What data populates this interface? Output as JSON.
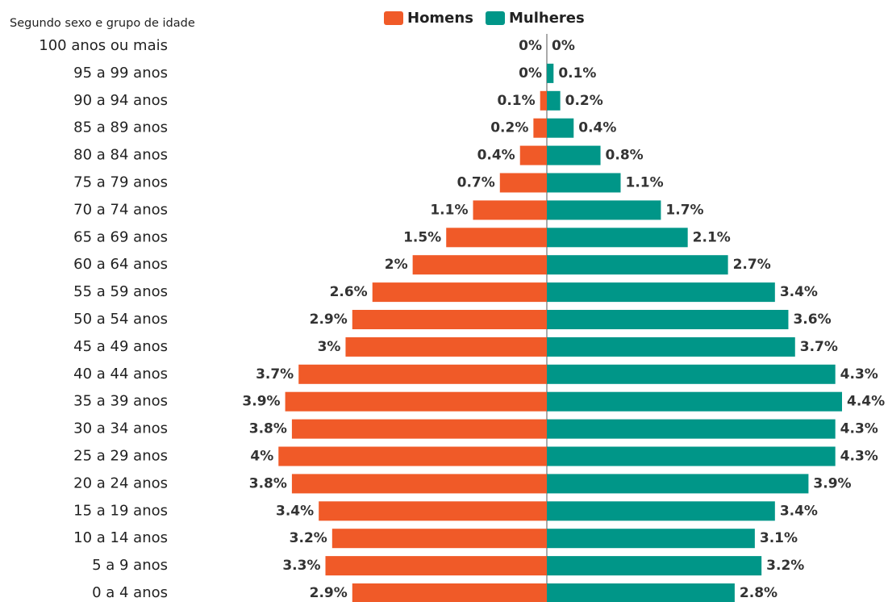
{
  "chart_data": {
    "type": "pyramid",
    "subtitle": "Segundo sexo e grupo de idade",
    "categories": [
      "100 anos ou mais",
      "95 a 99 anos",
      "90 a 94 anos",
      "85 a 89 anos",
      "80 a 84 anos",
      "75 a 79 anos",
      "70 a 74 anos",
      "65 a 69 anos",
      "60 a 64 anos",
      "55 a 59 anos",
      "50 a 54 anos",
      "45 a 49 anos",
      "40 a 44 anos",
      "35 a 39 anos",
      "30 a 34 anos",
      "25 a 29 anos",
      "20 a 24 anos",
      "15 a 19 anos",
      "10 a 14 anos",
      "5 a 9 anos",
      "0 a 4 anos"
    ],
    "series": [
      {
        "name": "Homens",
        "color": "#f05a28",
        "values": [
          0,
          0,
          0.1,
          0.2,
          0.4,
          0.7,
          1.1,
          1.5,
          2,
          2.6,
          2.9,
          3,
          3.7,
          3.9,
          3.8,
          4,
          3.8,
          3.4,
          3.2,
          3.3,
          2.9
        ],
        "value_labels": [
          "0%",
          "0%",
          "0.1%",
          "0.2%",
          "0.4%",
          "0.7%",
          "1.1%",
          "1.5%",
          "2%",
          "2.6%",
          "2.9%",
          "3%",
          "3.7%",
          "3.9%",
          "3.8%",
          "4%",
          "3.8%",
          "3.4%",
          "3.2%",
          "3.3%",
          "2.9%"
        ]
      },
      {
        "name": "Mulheres",
        "color": "#009688",
        "values": [
          0,
          0.1,
          0.2,
          0.4,
          0.8,
          1.1,
          1.7,
          2.1,
          2.7,
          3.4,
          3.6,
          3.7,
          4.3,
          4.4,
          4.3,
          4.3,
          3.9,
          3.4,
          3.1,
          3.2,
          2.8
        ],
        "value_labels": [
          "0%",
          "0.1%",
          "0.2%",
          "0.4%",
          "0.8%",
          "1.1%",
          "1.7%",
          "2.1%",
          "2.7%",
          "3.4%",
          "3.6%",
          "3.7%",
          "4.3%",
          "4.4%",
          "4.3%",
          "4.3%",
          "3.9%",
          "3.4%",
          "3.1%",
          "3.2%",
          "2.8%"
        ]
      }
    ]
  }
}
